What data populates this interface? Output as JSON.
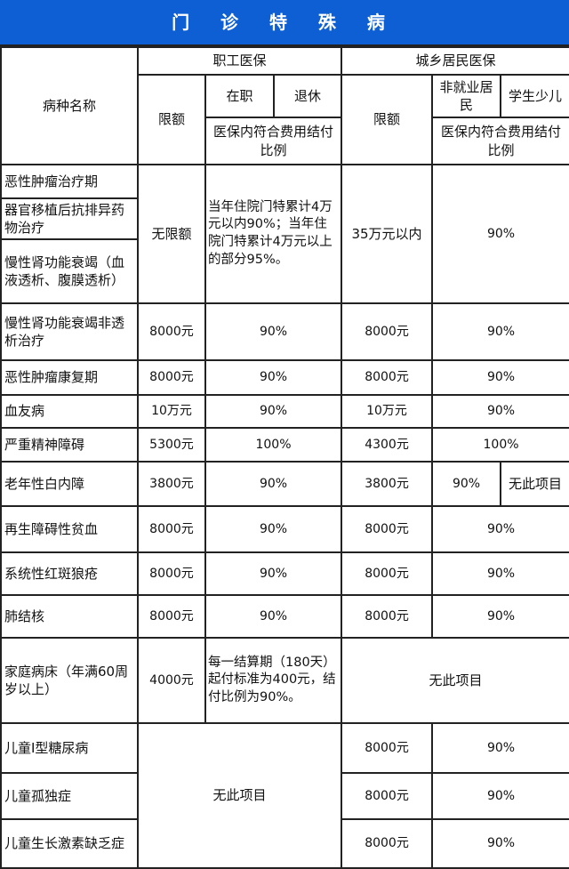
{
  "title": "门 诊 特 殊 病",
  "header": {
    "disease_name": "病种名称",
    "employee": "职工医保",
    "resident": "城乡居民医保",
    "limit": "限额",
    "in_service": "在职",
    "retired": "退休",
    "ratio": "医保内符合费用结付比例",
    "non_employed": "非就业居民",
    "student_child": "学生少儿"
  },
  "group1": {
    "names": [
      "恶性肿瘤治疗期",
      "器官移植后抗排异药物治疗",
      "慢性肾功能衰竭（血液透析、腹膜透析）"
    ],
    "emp_limit": "无限额",
    "emp_ratio": "当年住院门特累计4万元以内90%；当年住院门特累计4万元以上的部分95%。",
    "res_limit": "35万元以内",
    "res_ratio": "90%"
  },
  "rows": [
    {
      "name": "慢性肾功能衰竭非透析治疗",
      "emp_limit": "8000元",
      "emp_ratio": "90%",
      "res_limit": "8000元",
      "res_ratio": "90%"
    },
    {
      "name": "恶性肿瘤康复期",
      "emp_limit": "8000元",
      "emp_ratio": "90%",
      "res_limit": "8000元",
      "res_ratio": "90%"
    },
    {
      "name": "血友病",
      "emp_limit": "10万元",
      "emp_ratio": "90%",
      "res_limit": "10万元",
      "res_ratio": "90%"
    },
    {
      "name": "严重精神障碍",
      "emp_limit": "5300元",
      "emp_ratio": "100%",
      "res_limit": "4300元",
      "res_ratio": "100%"
    }
  ],
  "cataract": {
    "name": "老年性白内障",
    "emp_limit": "3800元",
    "emp_ratio": "90%",
    "res_limit": "3800元",
    "res_ratio_non_employed": "90%",
    "res_ratio_student": "无此项目"
  },
  "rows2": [
    {
      "name": "再生障碍性贫血",
      "emp_limit": "8000元",
      "emp_ratio": "90%",
      "res_limit": "8000元",
      "res_ratio": "90%"
    },
    {
      "name": "系统性红斑狼疮",
      "emp_limit": "8000元",
      "emp_ratio": "90%",
      "res_limit": "8000元",
      "res_ratio": "90%"
    },
    {
      "name": "肺结核",
      "emp_limit": "8000元",
      "emp_ratio": "90%",
      "res_limit": "8000元",
      "res_ratio": "90%"
    }
  ],
  "home_bed": {
    "name": "家庭病床（年满60周岁以上）",
    "emp_limit": "4000元",
    "emp_ratio": "每一结算期（180天）起付标准为400元，结付比例为90%。",
    "resident": "无此项目"
  },
  "children": {
    "employee": "无此项目",
    "rows": [
      {
        "name": "儿童Ⅰ型糖尿病",
        "res_limit": "8000元",
        "res_ratio": "90%"
      },
      {
        "name": "儿童孤独症",
        "res_limit": "8000元",
        "res_ratio": "90%"
      },
      {
        "name": "儿童生长激素缺乏症",
        "res_limit": "8000元",
        "res_ratio": "90%"
      }
    ]
  }
}
